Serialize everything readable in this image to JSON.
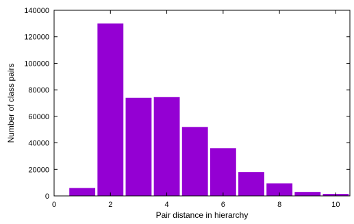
{
  "chart_data": {
    "type": "bar",
    "title": "",
    "xlabel": "Pair distance in hierarchy",
    "ylabel": "Number of class pairs",
    "x": [
      1,
      2,
      3,
      4,
      5,
      6,
      7,
      8,
      9,
      10
    ],
    "values": [
      6000,
      130000,
      74000,
      74500,
      52000,
      36000,
      18000,
      9500,
      3000,
      1500
    ],
    "xlim": [
      0,
      10.5
    ],
    "ylim": [
      0,
      140000
    ],
    "xticks": [
      "0",
      "2",
      "4",
      "6",
      "8",
      "10"
    ],
    "yticks": [
      "0",
      "20000",
      "40000",
      "60000",
      "80000",
      "100000",
      "120000",
      "140000"
    ],
    "grid": false,
    "legend": "none",
    "bar_color": "#9400d3"
  }
}
